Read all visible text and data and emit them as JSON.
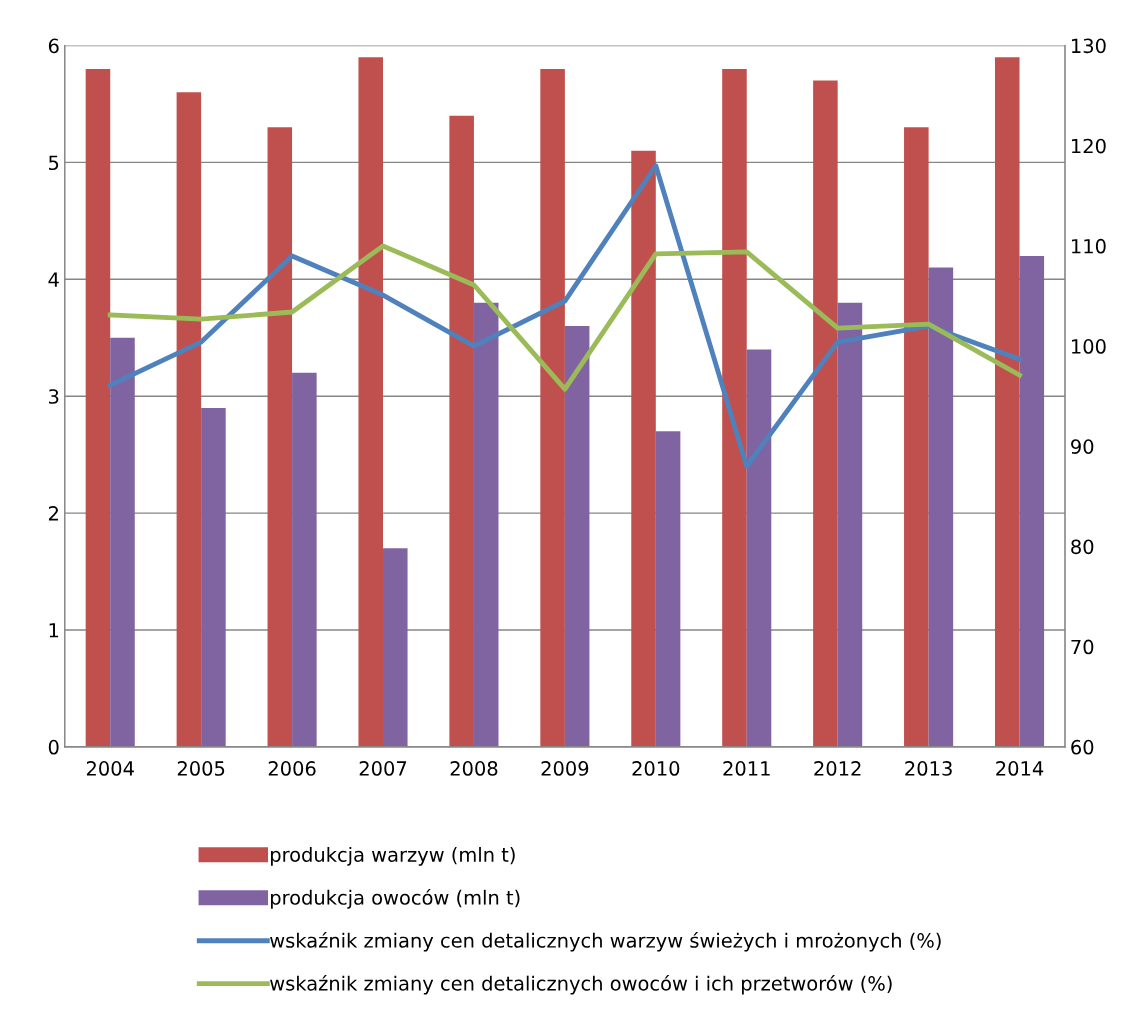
{
  "chart_data": {
    "type": "bar",
    "categories": [
      "2004",
      "2005",
      "2006",
      "2007",
      "2008",
      "2009",
      "2010",
      "2011",
      "2012",
      "2013",
      "2014"
    ],
    "series": [
      {
        "name": "produkcja warzyw (mln t)",
        "color": "#c0504d",
        "values": [
          5.8,
          5.6,
          5.3,
          5.9,
          5.4,
          5.8,
          5.1,
          5.8,
          5.7,
          5.3,
          5.9
        ]
      },
      {
        "name": "produkcja owoców (mln t)",
        "color": "#8064a2",
        "values": [
          3.5,
          2.9,
          3.2,
          1.7,
          3.8,
          3.6,
          2.7,
          3.4,
          3.8,
          4.1,
          4.2
        ]
      },
      {
        "name": "wskaźnik zmiany cen detalicznych warzyw świeżych i mrożonych (%)",
        "color": "#4f81bd",
        "type": "line",
        "axis": "y2",
        "values": [
          96.1,
          100.4,
          109,
          105.1,
          100,
          104.5,
          118,
          88,
          100.4,
          102,
          98.7
        ]
      },
      {
        "name": "wskaźnik zmiany cen detalicznych owoców i ich przetworów (%)",
        "color": "#9bbb59",
        "type": "line",
        "axis": "y2",
        "values": [
          103.1,
          102.7,
          103.4,
          110,
          106.1,
          95.7,
          109.2,
          109.4,
          101.8,
          102.2,
          97.1
        ]
      }
    ],
    "ylim": [
      0,
      6
    ],
    "yticks": [
      0,
      1,
      2,
      3,
      4,
      5,
      6
    ],
    "y2lim": [
      60,
      130
    ],
    "y2ticks": [
      60,
      70,
      80,
      90,
      100,
      110,
      120,
      130
    ],
    "grid": "y",
    "legend": "bottom",
    "marker": "none",
    "line_style": "solid"
  }
}
